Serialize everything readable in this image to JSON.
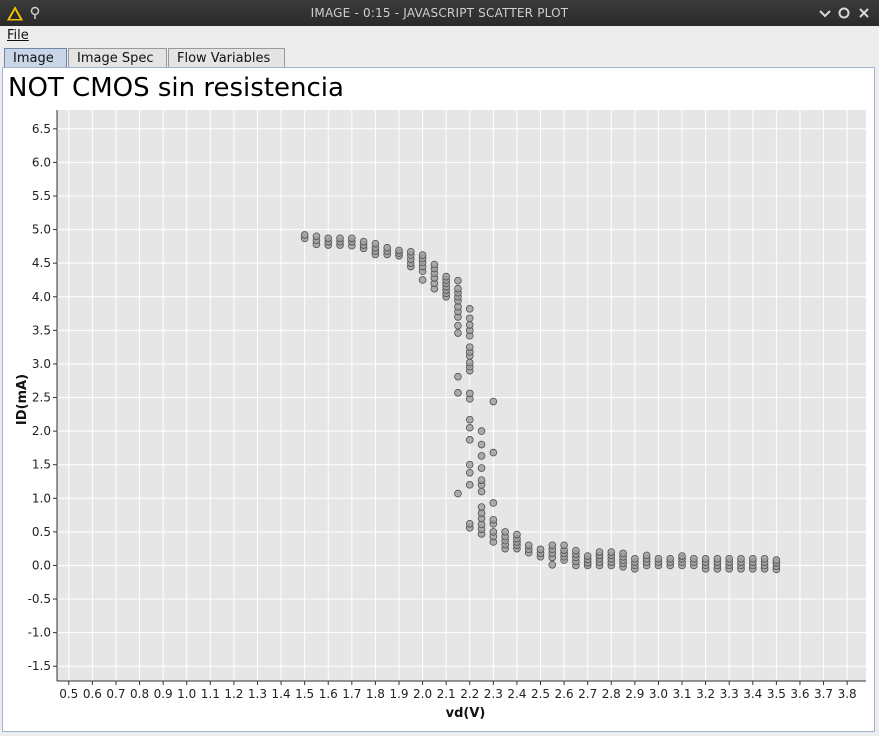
{
  "window": {
    "title": "IMAGE - 0:15 - JAVASCRIPT SCATTER PLOT",
    "controls": [
      "minimize",
      "maximize",
      "close"
    ]
  },
  "menu": {
    "file_label": "File"
  },
  "tabs": [
    {
      "label": "Image",
      "active": true
    },
    {
      "label": "Image Spec",
      "active": false
    },
    {
      "label": "Flow Variables",
      "active": false
    }
  ],
  "colors": {
    "plot_background": "#e6e6e6",
    "grid": "#ffffff",
    "point_fill": "#a0a0a0",
    "point_stroke": "#505050"
  },
  "chart_data": {
    "type": "scatter",
    "title": "NOT CMOS sin resistencia",
    "xlabel": "vd(V)",
    "ylabel": "ID(mA)",
    "xlim": [
      0.45,
      3.88
    ],
    "ylim": [
      -1.72,
      6.78
    ],
    "x_ticks": [
      0.5,
      0.6,
      0.7,
      0.8,
      0.9,
      1.0,
      1.1,
      1.2,
      1.3,
      1.4,
      1.5,
      1.6,
      1.7,
      1.8,
      1.9,
      2.0,
      2.1,
      2.2,
      2.3,
      2.4,
      2.5,
      2.6,
      2.7,
      2.8,
      2.9,
      3.0,
      3.1,
      3.2,
      3.3,
      3.4,
      3.5,
      3.6,
      3.7,
      3.8
    ],
    "y_ticks": [
      6.5,
      6.0,
      5.5,
      5.0,
      4.5,
      4.0,
      3.5,
      3.0,
      2.5,
      2.0,
      1.5,
      1.0,
      0.5,
      0.0,
      -0.5,
      -1.0,
      -1.5
    ],
    "x_tick_labels": [
      "0.5",
      "0.6",
      "0.7",
      "0.8",
      "0.9",
      "1.0",
      "1.1",
      "1.2",
      "1.3",
      "1.4",
      "1.5",
      "1.6",
      "1.7",
      "1.8",
      "1.9",
      "2.0",
      "2.1",
      "2.2",
      "2.3",
      "2.4",
      "2.5",
      "2.6",
      "2.7",
      "2.8",
      "2.9",
      "3.0",
      "3.1",
      "3.2",
      "3.3",
      "3.4",
      "3.5",
      "3.6",
      "3.7",
      "3.8"
    ],
    "y_tick_labels": [
      "6.5",
      "6.0",
      "5.5",
      "5.0",
      "4.5",
      "4.0",
      "3.5",
      "3.0",
      "2.5",
      "2.0",
      "1.5",
      "1.0",
      "0.5",
      "0.0",
      "-0.5",
      "-1.0",
      "-1.5"
    ],
    "grid": true,
    "columns": [
      {
        "x": 1.5,
        "y": [
          4.87,
          4.92
        ]
      },
      {
        "x": 1.55,
        "y": [
          4.78,
          4.84,
          4.9
        ]
      },
      {
        "x": 1.6,
        "y": [
          4.77,
          4.82,
          4.87
        ]
      },
      {
        "x": 1.65,
        "y": [
          4.77,
          4.82,
          4.87
        ]
      },
      {
        "x": 1.7,
        "y": [
          4.76,
          4.82,
          4.87
        ]
      },
      {
        "x": 1.75,
        "y": [
          4.72,
          4.77,
          4.82
        ]
      },
      {
        "x": 1.8,
        "y": [
          4.63,
          4.68,
          4.73,
          4.79
        ]
      },
      {
        "x": 1.85,
        "y": [
          4.63,
          4.68,
          4.73
        ]
      },
      {
        "x": 1.9,
        "y": [
          4.61,
          4.65,
          4.69
        ]
      },
      {
        "x": 1.95,
        "y": [
          4.45,
          4.5,
          4.56,
          4.62,
          4.67
        ]
      },
      {
        "x": 2.0,
        "y": [
          4.25,
          4.38,
          4.45,
          4.51,
          4.57,
          4.62
        ]
      },
      {
        "x": 2.05,
        "y": [
          4.12,
          4.2,
          4.28,
          4.35,
          4.42,
          4.48
        ]
      },
      {
        "x": 2.1,
        "y": [
          4.0,
          4.05,
          4.1,
          4.15,
          4.2,
          4.25,
          4.3
        ]
      },
      {
        "x": 2.15,
        "y": [
          1.07,
          2.57,
          2.81,
          3.46,
          3.57,
          3.7,
          3.78,
          3.85,
          3.94,
          4.0,
          4.06,
          4.12,
          4.24
        ]
      },
      {
        "x": 2.2,
        "y": [
          0.56,
          0.62,
          1.2,
          1.38,
          1.5,
          1.87,
          2.05,
          2.17,
          2.48,
          2.56,
          2.9,
          2.96,
          3.02,
          3.12,
          3.18,
          3.25,
          3.42,
          3.5,
          3.58,
          3.68,
          3.82
        ]
      },
      {
        "x": 2.25,
        "y": [
          0.47,
          0.54,
          0.61,
          0.7,
          0.78,
          0.87,
          1.1,
          1.2,
          1.27,
          1.45,
          1.63,
          1.8,
          2.0
        ]
      },
      {
        "x": 2.3,
        "y": [
          0.35,
          0.43,
          0.5,
          0.62,
          0.68,
          0.93,
          1.68,
          2.44
        ]
      },
      {
        "x": 2.35,
        "y": [
          0.25,
          0.31,
          0.37,
          0.43,
          0.5
        ]
      },
      {
        "x": 2.4,
        "y": [
          0.25,
          0.3,
          0.35,
          0.4,
          0.46
        ]
      },
      {
        "x": 2.45,
        "y": [
          0.19,
          0.24,
          0.3
        ]
      },
      {
        "x": 2.5,
        "y": [
          0.13,
          0.18,
          0.24
        ]
      },
      {
        "x": 2.55,
        "y": [
          0.01,
          0.12,
          0.18,
          0.24,
          0.3
        ]
      },
      {
        "x": 2.6,
        "y": [
          0.08,
          0.13,
          0.18,
          0.23,
          0.3
        ]
      },
      {
        "x": 2.65,
        "y": [
          0.0,
          0.06,
          0.12,
          0.17,
          0.22
        ]
      },
      {
        "x": 2.7,
        "y": [
          0.0,
          0.04,
          0.09,
          0.14
        ]
      },
      {
        "x": 2.75,
        "y": [
          0.0,
          0.05,
          0.1,
          0.15,
          0.2
        ]
      },
      {
        "x": 2.8,
        "y": [
          0.0,
          0.05,
          0.1,
          0.15,
          0.2
        ]
      },
      {
        "x": 2.85,
        "y": [
          -0.02,
          0.03,
          0.08,
          0.13,
          0.18
        ]
      },
      {
        "x": 2.9,
        "y": [
          -0.05,
          0.0,
          0.05,
          0.1
        ]
      },
      {
        "x": 2.95,
        "y": [
          0.0,
          0.05,
          0.1,
          0.15
        ]
      },
      {
        "x": 3.0,
        "y": [
          0.0,
          0.05,
          0.1
        ]
      },
      {
        "x": 3.05,
        "y": [
          0.0,
          0.05,
          0.1
        ]
      },
      {
        "x": 3.1,
        "y": [
          0.0,
          0.05,
          0.1,
          0.14
        ]
      },
      {
        "x": 3.15,
        "y": [
          0.0,
          0.05,
          0.1
        ]
      },
      {
        "x": 3.2,
        "y": [
          -0.05,
          0.0,
          0.05,
          0.1
        ]
      },
      {
        "x": 3.25,
        "y": [
          -0.05,
          0.0,
          0.05,
          0.1
        ]
      },
      {
        "x": 3.3,
        "y": [
          -0.05,
          0.0,
          0.05,
          0.1
        ]
      },
      {
        "x": 3.35,
        "y": [
          -0.05,
          0.0,
          0.05,
          0.1
        ]
      },
      {
        "x": 3.4,
        "y": [
          -0.05,
          0.0,
          0.05,
          0.1
        ]
      },
      {
        "x": 3.45,
        "y": [
          -0.05,
          0.0,
          0.05,
          0.1
        ]
      },
      {
        "x": 3.5,
        "y": [
          -0.06,
          -0.01,
          0.04,
          0.08
        ]
      }
    ]
  }
}
